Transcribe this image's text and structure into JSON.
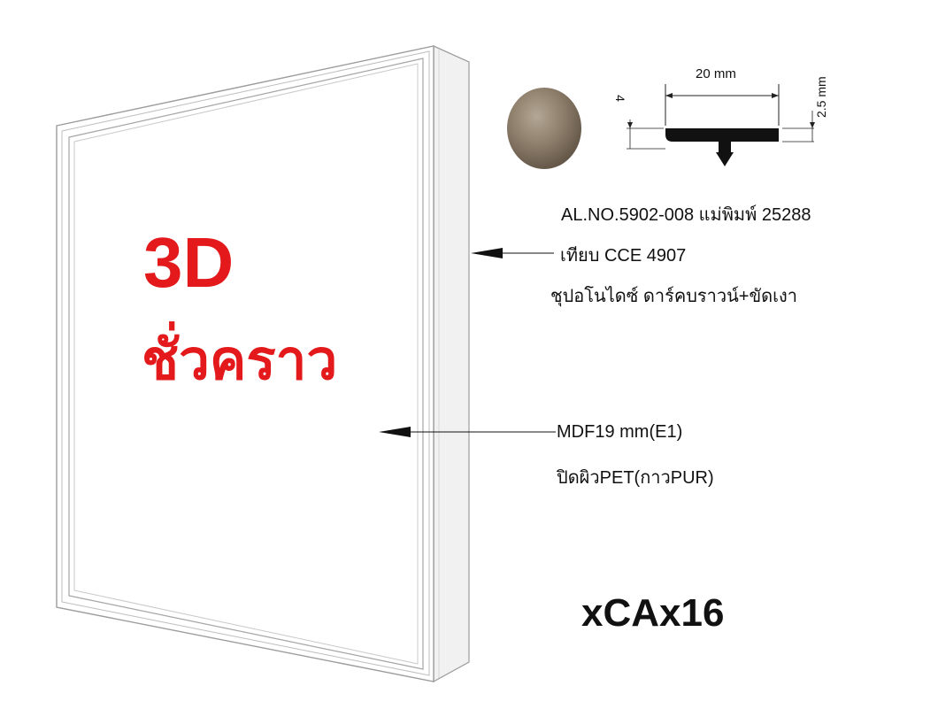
{
  "title_3d": "3D",
  "title_thai": "ชั่วคราว",
  "profile": {
    "width_dim": "20 mm",
    "left_dim": "4",
    "right_dim": "2.5 mm",
    "swatch_color": "#8a7a68"
  },
  "callouts": {
    "model": "AL.NO.5902-008 แม่พิมพ์ 25288",
    "compare": "เทียบ CCE 4907",
    "finish": "ชุปอโนไดซ์ ดาร์คบราวน์+ขัดเงา",
    "board": "MDF19 mm(E1)",
    "surface": "ปิดผิวPET(กาวPUR)"
  },
  "product_code": "xCAx16",
  "colors": {
    "accent": "#e3191b",
    "frame_side": "#f2f2f2",
    "outline": "#b8b8b8"
  }
}
